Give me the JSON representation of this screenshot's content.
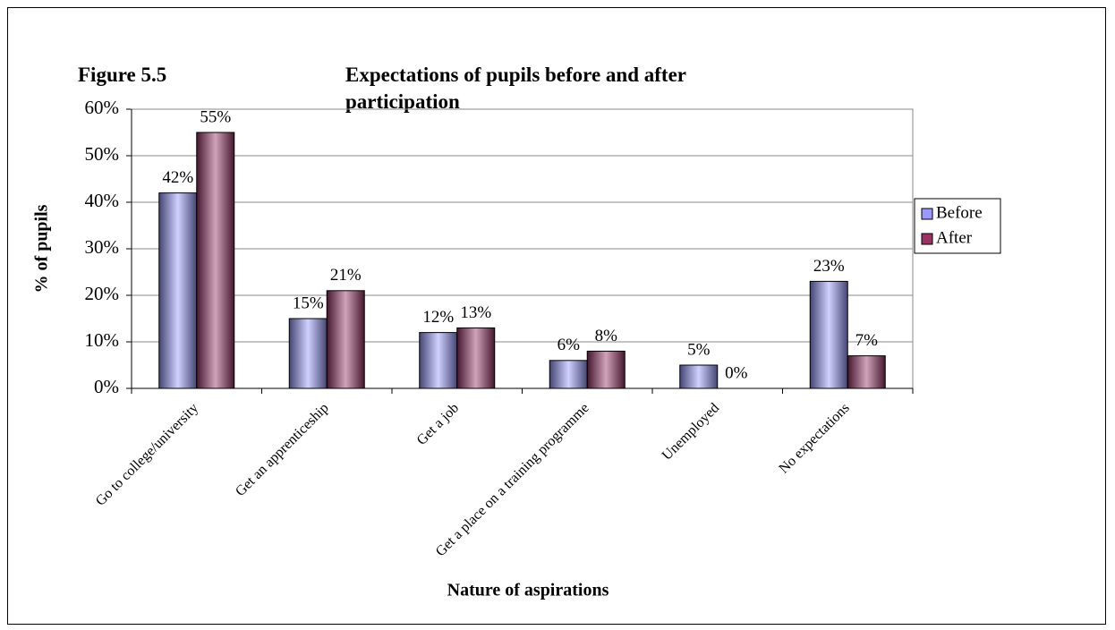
{
  "chart_data": {
    "type": "bar",
    "figure_label": "Figure 5.5",
    "title": "Expectations of pupils before and after participation",
    "x_label": "Nature of aspirations",
    "y_label": "% of pupils",
    "categories": [
      "Go to college/university",
      "Get an apprenticeship",
      "Get a job",
      "Get a place on a training programme",
      "Unemployed",
      "No expectations"
    ],
    "series": [
      {
        "name": "Before",
        "color": "#9999ff",
        "values": [
          42,
          15,
          12,
          6,
          5,
          23
        ],
        "value_labels": [
          "42%",
          "15%",
          "12%",
          "6%",
          "5%",
          "23%"
        ]
      },
      {
        "name": "After",
        "color": "#993366",
        "values": [
          55,
          21,
          13,
          8,
          0,
          7
        ],
        "value_labels": [
          "55%",
          "21%",
          "13%",
          "8%",
          "0%",
          "7%"
        ]
      }
    ],
    "ylim": [
      0,
      60
    ],
    "yticks": [
      {
        "value": 0,
        "label": "0%"
      },
      {
        "value": 10,
        "label": "10%"
      },
      {
        "value": 20,
        "label": "20%"
      },
      {
        "value": 30,
        "label": "30%"
      },
      {
        "value": 40,
        "label": "40%"
      },
      {
        "value": 50,
        "label": "50%"
      },
      {
        "value": 60,
        "label": "60%"
      }
    ],
    "grid": true,
    "legend": "right"
  }
}
